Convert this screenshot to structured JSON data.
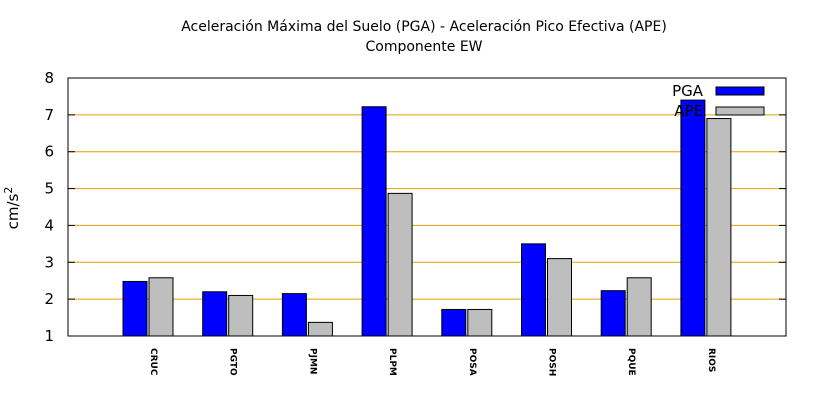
{
  "chart_data": {
    "type": "bar",
    "title": "Aceleración Máxima del Suelo (PGA) -  Aceleración Pico Efectiva (APE)",
    "subtitle": "Componente EW",
    "xlabel": "",
    "ylabel_base": "cm/s",
    "ylabel_exp": "2",
    "ylim": [
      1,
      8
    ],
    "yticks": [
      1,
      2,
      3,
      4,
      5,
      6,
      7,
      8
    ],
    "grid": true,
    "legend_position": "top-right",
    "categories": [
      "CRUC",
      "PGTO",
      "PJMN",
      "PLPM",
      "POSA",
      "POSH",
      "PQUE",
      "RIOS"
    ],
    "series": [
      {
        "name": "PGA",
        "color": "#0000ff",
        "values": [
          2.48,
          2.2,
          2.15,
          7.22,
          1.72,
          3.5,
          2.23,
          7.4
        ]
      },
      {
        "name": "APE",
        "color": "#bebebe",
        "values": [
          2.58,
          2.1,
          1.37,
          4.87,
          1.72,
          3.1,
          2.58,
          6.9
        ]
      }
    ],
    "grid_color": "#e0a000"
  }
}
